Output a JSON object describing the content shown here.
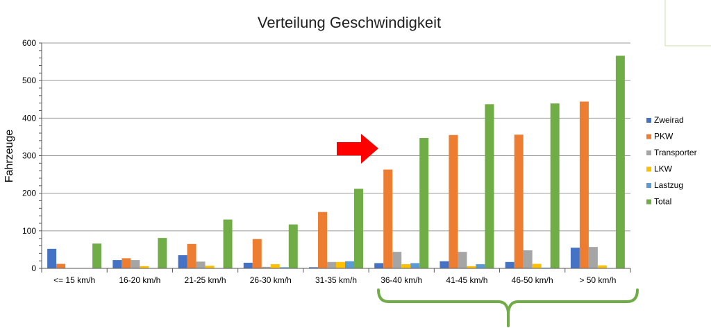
{
  "chart_data": {
    "type": "bar",
    "title": "Verteilung Geschwindigkeit",
    "xlabel": "",
    "ylabel": "Fahrzeuge",
    "ylim": [
      0,
      600
    ],
    "yticks": [
      "0",
      "100",
      "200",
      "300",
      "400",
      "500",
      "600"
    ],
    "ytick_values": [
      0,
      100,
      200,
      300,
      400,
      500,
      600
    ],
    "grid": true,
    "legend_position": "right",
    "categories": [
      "<= 15 km/h",
      "16-20 km/h",
      "21-25 km/h",
      "26-30 km/h",
      "31-35 km/h",
      "36-40 km/h",
      "41-45 km/h",
      "46-50 km/h",
      "> 50 km/h"
    ],
    "series": [
      {
        "name": "Zweirad",
        "color": "#4472C4",
        "values": [
          52,
          22,
          35,
          15,
          3,
          14,
          19,
          17,
          55
        ]
      },
      {
        "name": "PKW",
        "color": "#ED7D31",
        "values": [
          12,
          27,
          65,
          78,
          150,
          263,
          355,
          356,
          444
        ]
      },
      {
        "name": "Transporter",
        "color": "#A5A5A5",
        "values": [
          0,
          22,
          18,
          4,
          17,
          44,
          44,
          48,
          57
        ]
      },
      {
        "name": "LKW",
        "color": "#FFC000",
        "values": [
          0,
          6,
          7,
          11,
          17,
          11,
          6,
          12,
          8
        ]
      },
      {
        "name": "Lastzug",
        "color": "#5B9BD5",
        "values": [
          0,
          0,
          0,
          3,
          19,
          14,
          11,
          2,
          0
        ]
      },
      {
        "name": "Total",
        "color": "#70AD47",
        "values": [
          66,
          81,
          130,
          117,
          212,
          347,
          437,
          439,
          566
        ]
      }
    ]
  },
  "annotations": {
    "arrow_color": "#FF0000",
    "brace_color": "#70AD47",
    "arrow_icon": "red-right-arrow",
    "brace_icon": "green-curly-brace"
  }
}
